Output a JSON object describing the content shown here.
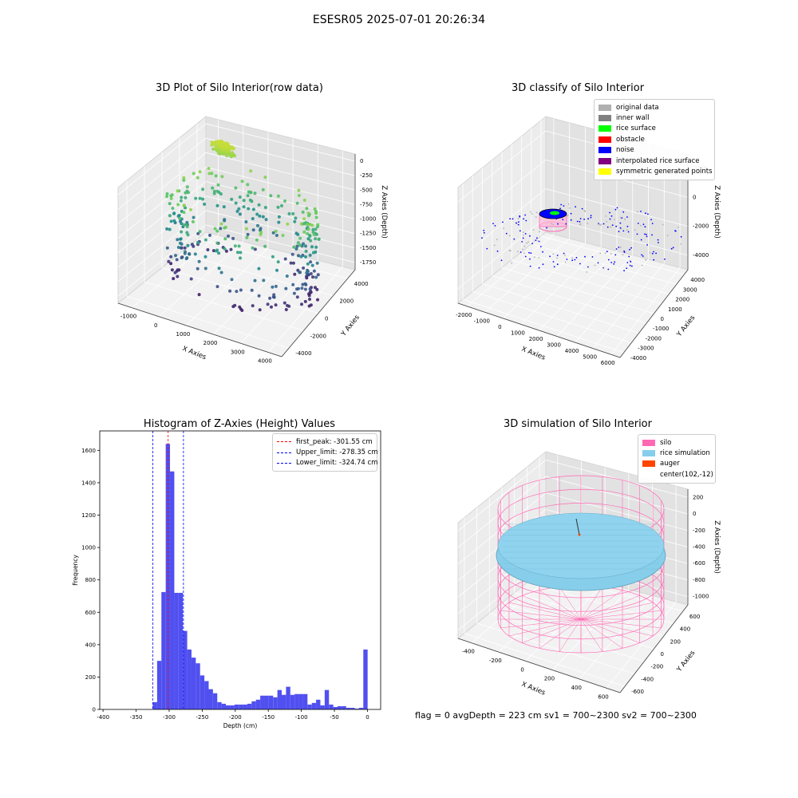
{
  "suptitle": "ESESR05 2025-07-01 20:26:34",
  "status_text": "flag = 0     avgDepth = 223 cm  sv1 = 700~2300  sv2 = 700~2300",
  "chart_data": [
    {
      "type": "scatter",
      "title": "3D Plot of Silo Interior(row data)",
      "xlabel": "X Axies",
      "ylabel": "Y Axies",
      "zlabel": "Z Axies (Depth)",
      "xticks": [
        "-1000",
        "0",
        "1000",
        "2000",
        "3000",
        "4000"
      ],
      "yticks": [
        "4000",
        "2000",
        "0",
        "-2000",
        "-4000"
      ],
      "zticks": [
        "0",
        "-250",
        "-500",
        "-750",
        "-1000",
        "-1250",
        "-1500",
        "-1750"
      ],
      "xlim": [
        -1200,
        4600
      ],
      "ylim": [
        -4500,
        4500
      ],
      "zlim": [
        -1850,
        100
      ],
      "colormap": "viridis"
    },
    {
      "type": "scatter",
      "title": "3D classify of Silo Interior",
      "xlabel": "X Axies",
      "ylabel": "Y Axies",
      "zlabel": "Z Axies (Depth)",
      "xticks": [
        "-2000",
        "-1000",
        "0",
        "1000",
        "2000",
        "3000",
        "4000",
        "5000",
        "6000"
      ],
      "yticks": [
        "4000",
        "3000",
        "2000",
        "1000",
        "0",
        "-1000",
        "-2000",
        "-3000",
        "-4000"
      ],
      "zticks": [
        "2000",
        "0",
        "-2000",
        "-4000"
      ],
      "xlim": [
        -2300,
        6200
      ],
      "ylim": [
        -4300,
        4300
      ],
      "zlim": [
        -4600,
        3000
      ],
      "legend": [
        {
          "label": "original data",
          "color": "#b0b0b0"
        },
        {
          "label": "inner wall",
          "color": "#808080"
        },
        {
          "label": "rice surface",
          "color": "#00ff00"
        },
        {
          "label": "obstacle",
          "color": "#ff0000"
        },
        {
          "label": "noise",
          "color": "#0000ff"
        },
        {
          "label": "interpolated rice surface",
          "color": "#800080"
        },
        {
          "label": "symmetric generated points",
          "color": "#ffff00"
        }
      ]
    },
    {
      "type": "bar",
      "title": "Histogram of Z-Axies (Height) Values",
      "xlabel": "Depth (cm)",
      "ylabel": "Frequency",
      "xlim": [
        -405,
        20
      ],
      "ylim": [
        0,
        1720
      ],
      "xticks": [
        -400,
        -350,
        -300,
        -250,
        -200,
        -150,
        -100,
        -50,
        0
      ],
      "yticks": [
        0,
        200,
        400,
        600,
        800,
        1000,
        1200,
        1400,
        1600
      ],
      "bin_width": 6.5,
      "bar_color": "#5050f0",
      "bins": [
        {
          "x": -324.7,
          "count": 45
        },
        {
          "x": -318.2,
          "count": 300
        },
        {
          "x": -311.7,
          "count": 725
        },
        {
          "x": -305.2,
          "count": 1640
        },
        {
          "x": -298.7,
          "count": 1470
        },
        {
          "x": -292.2,
          "count": 720
        },
        {
          "x": -285.7,
          "count": 720
        },
        {
          "x": -279.2,
          "count": 485
        },
        {
          "x": -272.7,
          "count": 370
        },
        {
          "x": -266.2,
          "count": 320
        },
        {
          "x": -259.7,
          "count": 285
        },
        {
          "x": -253.2,
          "count": 210
        },
        {
          "x": -246.7,
          "count": 175
        },
        {
          "x": -240.2,
          "count": 125
        },
        {
          "x": -233.7,
          "count": 100
        },
        {
          "x": -227.2,
          "count": 45
        },
        {
          "x": -220.7,
          "count": 35
        },
        {
          "x": -214.2,
          "count": 25
        },
        {
          "x": -207.7,
          "count": 25
        },
        {
          "x": -201.2,
          "count": 30
        },
        {
          "x": -194.7,
          "count": 30
        },
        {
          "x": -188.2,
          "count": 30
        },
        {
          "x": -181.7,
          "count": 35
        },
        {
          "x": -175.2,
          "count": 50
        },
        {
          "x": -168.7,
          "count": 60
        },
        {
          "x": -162.2,
          "count": 85
        },
        {
          "x": -155.7,
          "count": 85
        },
        {
          "x": -149.2,
          "count": 85
        },
        {
          "x": -142.7,
          "count": 75
        },
        {
          "x": -136.2,
          "count": 120
        },
        {
          "x": -129.7,
          "count": 90
        },
        {
          "x": -123.2,
          "count": 140
        },
        {
          "x": -116.7,
          "count": 90
        },
        {
          "x": -110.2,
          "count": 95
        },
        {
          "x": -103.7,
          "count": 95
        },
        {
          "x": -97.2,
          "count": 95
        },
        {
          "x": -90.7,
          "count": 30
        },
        {
          "x": -84.2,
          "count": 40
        },
        {
          "x": -77.7,
          "count": 60
        },
        {
          "x": -71.2,
          "count": 25
        },
        {
          "x": -64.7,
          "count": 120
        },
        {
          "x": -58.2,
          "count": 30
        },
        {
          "x": -51.7,
          "count": 15
        },
        {
          "x": -45.2,
          "count": 20
        },
        {
          "x": -38.7,
          "count": 20
        },
        {
          "x": -32.2,
          "count": 10
        },
        {
          "x": -25.7,
          "count": 10
        },
        {
          "x": -19.2,
          "count": 5
        },
        {
          "x": -12.7,
          "count": 10
        },
        {
          "x": -6.2,
          "count": 370
        }
      ],
      "vlines": [
        {
          "label": "first_peak: -301.55 cm",
          "x": -301.55,
          "color": "#ff0000"
        },
        {
          "label": "Upper_limit: -278.35 cm",
          "x": -278.35,
          "color": "#0000ff"
        },
        {
          "label": "Lower_limit: -324.74 cm",
          "x": -324.74,
          "color": "#0000ff"
        }
      ]
    },
    {
      "type": "surface",
      "title": "3D simulation of Silo Interior",
      "xlabel": "X Axies",
      "ylabel": "Y Axies",
      "zlabel": "Z Axies (Depth)",
      "xticks": [
        "-400",
        "-200",
        "0",
        "200",
        "400",
        "600"
      ],
      "yticks": [
        "600",
        "400",
        "200",
        "0",
        "-200",
        "-400",
        "-600"
      ],
      "zticks": [
        "200",
        "0",
        "-200",
        "-400",
        "-600",
        "-800",
        "-1000"
      ],
      "legend": [
        {
          "label": "silo",
          "color": "#ff69b4"
        },
        {
          "label": "rice simulation",
          "color": "#87ceeb"
        },
        {
          "label": "auger",
          "color": "#ff4500"
        },
        {
          "label": "center(102,-12)",
          "color": ""
        }
      ]
    }
  ]
}
